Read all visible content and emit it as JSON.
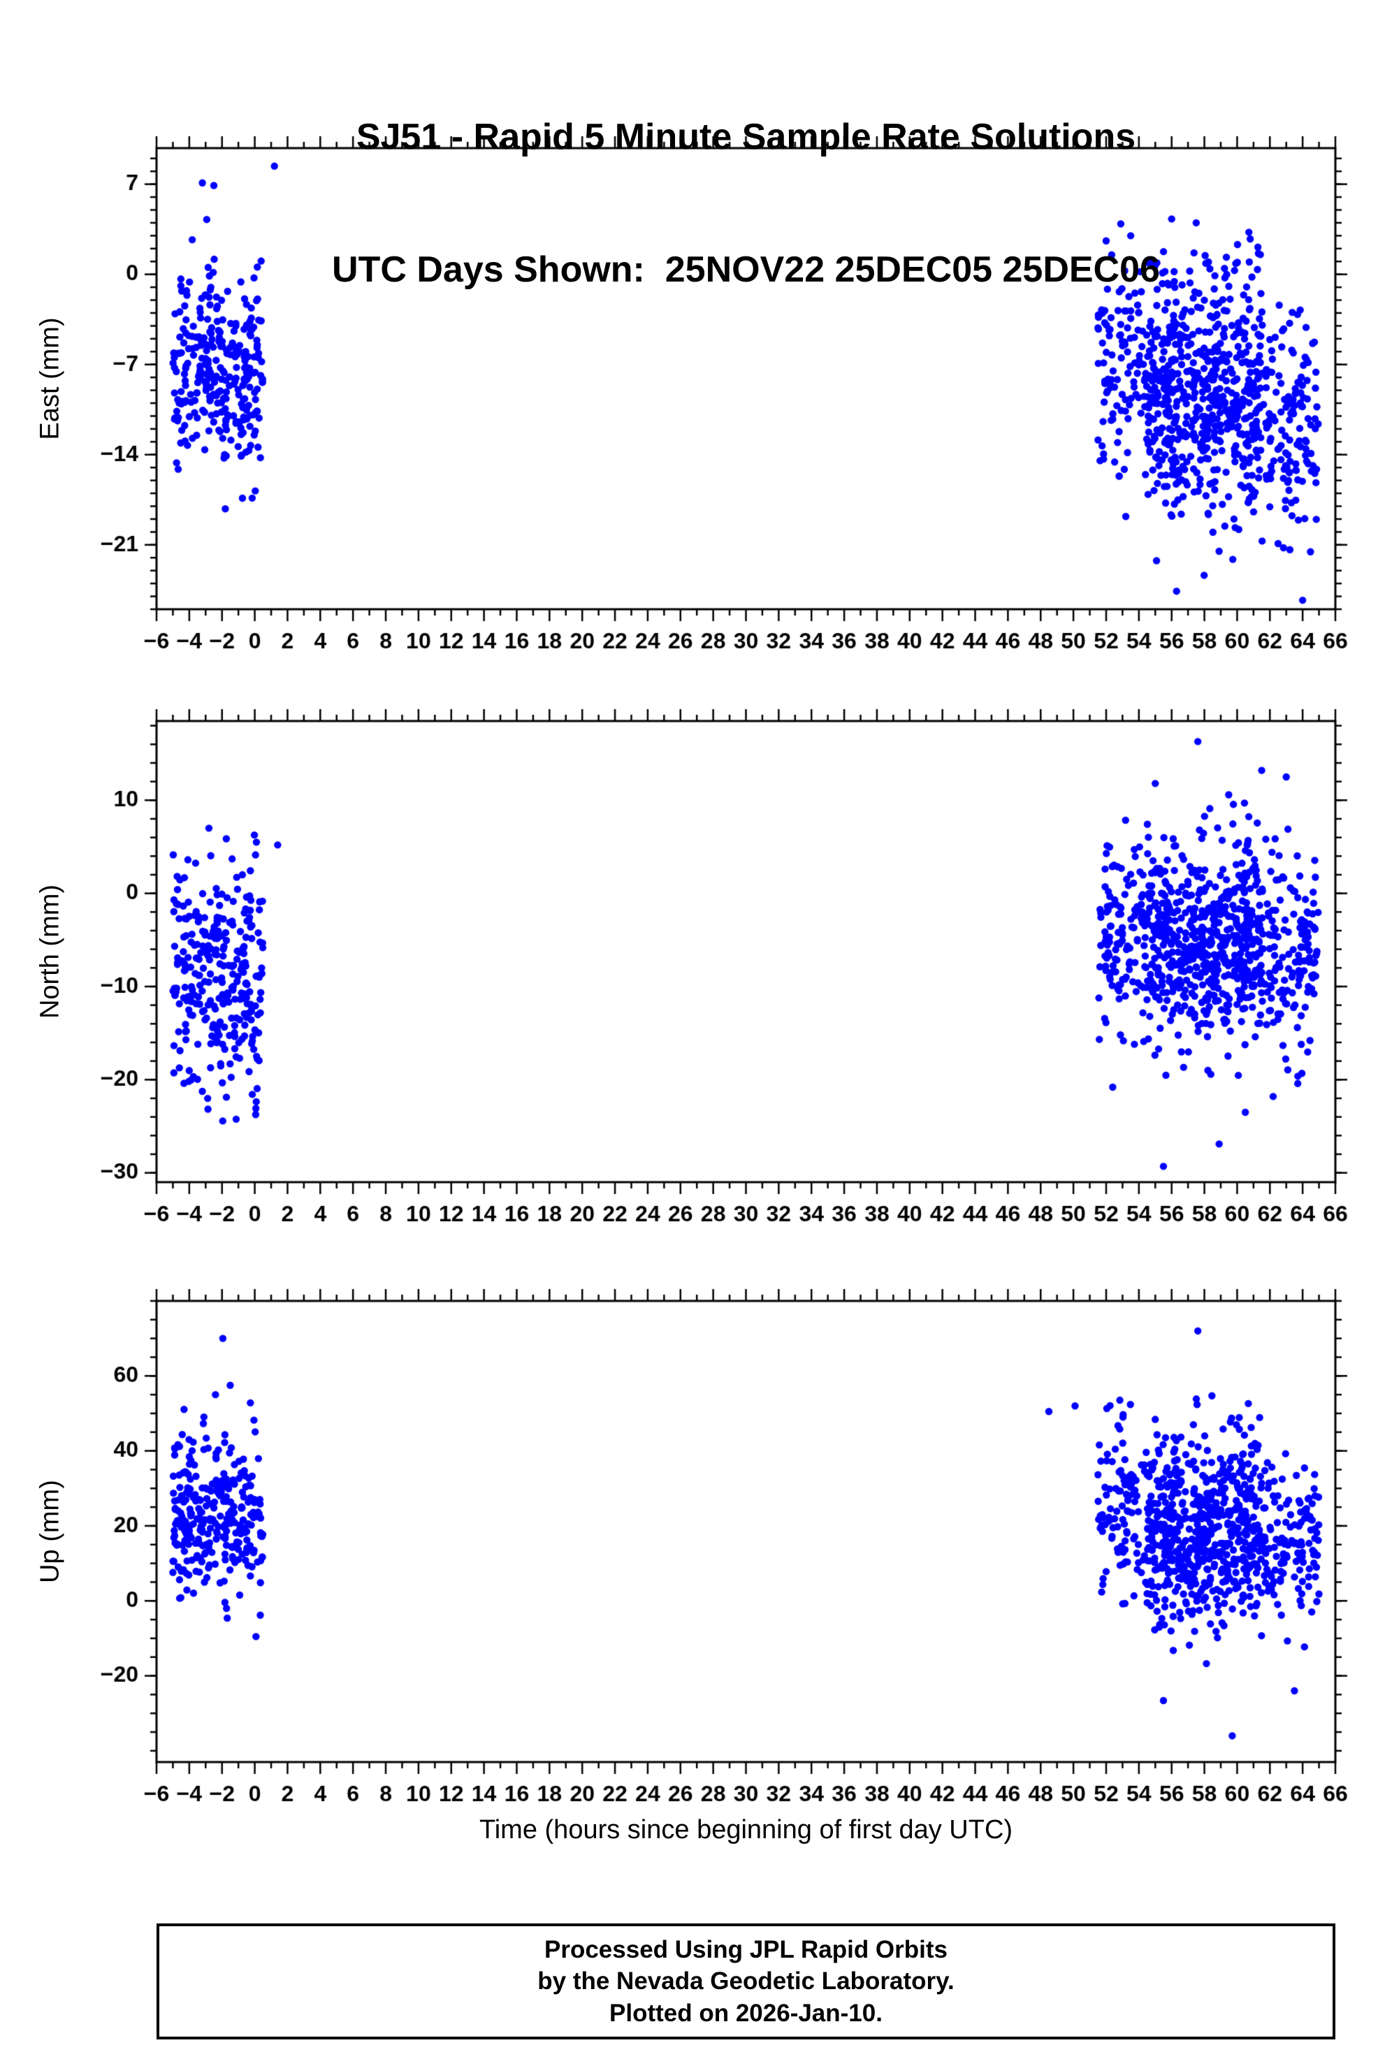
{
  "title": {
    "line1": "SJ51 - Rapid 5 Minute Sample Rate Solutions",
    "line2": "UTC Days Shown:  25NOV22 25DEC05 25DEC06"
  },
  "footer": {
    "line1": "Processed Using JPL Rapid Orbits",
    "line2": "by the Nevada Geodetic Laboratory.",
    "line3": "Plotted on 2026-Jan-10."
  },
  "colors": {
    "point": "#0000ff",
    "axis": "#000000",
    "background": "#ffffff"
  },
  "chart_data": {
    "type": "scatter",
    "title": "SJ51 - Rapid 5 Minute Sample Rate Solutions",
    "subtitle": "UTC Days Shown:  25NOV22 25DEC05 25DEC06",
    "xlabel": "Time (hours since beginning of first day UTC)",
    "days_shown": [
      "25NOV22",
      "25DEC05",
      "25DEC06"
    ],
    "point_color": "#0000ff",
    "x_axis": {
      "range": [
        -6,
        66
      ],
      "major_step": 2,
      "minor_step": 1,
      "units": "hours"
    },
    "panels": [
      {
        "id": "east",
        "ylabel": "East (mm)",
        "y_range": [
          -26,
          9.8
        ],
        "y_ticks": [
          7,
          0,
          -7,
          -14,
          -21
        ],
        "y_minor_step": 1,
        "clusters": [
          {
            "count": 300,
            "x_range": [
              -5.0,
              0.5
            ],
            "y_mean": -7.5,
            "y_std": 3.9,
            "y_clamp": [
              -18.5,
              7.5
            ]
          },
          {
            "count": 400,
            "x_range": [
              51.5,
              61.5
            ],
            "y_mean": -7.0,
            "y_std": 4.3,
            "y_clamp": [
              -20.0,
              4.5
            ]
          },
          {
            "count": 450,
            "x_range": [
              54.5,
              65.0
            ],
            "y_mean": -11.5,
            "y_std": 4.2,
            "y_clamp": [
              -23.5,
              0.5
            ]
          }
        ],
        "outliers": [
          [
            -3.2,
            7.1
          ],
          [
            -2.5,
            6.9
          ],
          [
            1.2,
            8.4
          ],
          [
            -1.8,
            -18.2
          ],
          [
            52.0,
            2.6
          ],
          [
            53.5,
            3.0
          ],
          [
            56.0,
            4.3
          ],
          [
            57.5,
            4.0
          ],
          [
            53.2,
            -18.8
          ],
          [
            58.9,
            -21.5
          ],
          [
            56.3,
            -24.6
          ],
          [
            64.0,
            -25.3
          ],
          [
            62.5,
            -20.9
          ],
          [
            60.1,
            -19.8
          ]
        ]
      },
      {
        "id": "north",
        "ylabel": "North (mm)",
        "y_range": [
          -31,
          18.5
        ],
        "y_ticks": [
          10,
          0,
          -10,
          -20,
          -30
        ],
        "y_minor_step": 2,
        "clusters": [
          {
            "count": 300,
            "x_range": [
              -5.0,
              0.5
            ],
            "y_mean": -8.5,
            "y_std": 6.2,
            "y_clamp": [
              -26.0,
              7.0
            ]
          },
          {
            "count": 400,
            "x_range": [
              51.5,
              61.5
            ],
            "y_mean": -4.5,
            "y_std": 5.5,
            "y_clamp": [
              -20.5,
              13.0
            ]
          },
          {
            "count": 450,
            "x_range": [
              54.5,
              65.0
            ],
            "y_mean": -6.0,
            "y_std": 5.5,
            "y_clamp": [
              -22.0,
              11.0
            ]
          }
        ],
        "outliers": [
          [
            -2.8,
            7.0
          ],
          [
            0.1,
            5.5
          ],
          [
            1.4,
            5.2
          ],
          [
            57.6,
            16.3
          ],
          [
            61.5,
            13.2
          ],
          [
            55.0,
            11.8
          ],
          [
            63.0,
            12.5
          ],
          [
            55.5,
            -29.3
          ],
          [
            58.9,
            -26.9
          ],
          [
            52.4,
            -20.8
          ],
          [
            60.5,
            -23.5
          ],
          [
            62.2,
            -21.8
          ]
        ]
      },
      {
        "id": "up",
        "ylabel": "Up (mm)",
        "y_range": [
          -43,
          80
        ],
        "y_ticks": [
          60,
          40,
          20,
          0,
          -20
        ],
        "y_minor_step": 5,
        "clusters": [
          {
            "count": 300,
            "x_range": [
              -5.0,
              0.5
            ],
            "y_mean": 22.0,
            "y_std": 11.0,
            "y_clamp": [
              -11.0,
              57.0
            ]
          },
          {
            "count": 400,
            "x_range": [
              51.5,
              61.5
            ],
            "y_mean": 24.0,
            "y_std": 12.0,
            "y_clamp": [
              -15.0,
              55.0
            ]
          },
          {
            "count": 450,
            "x_range": [
              54.5,
              65.0
            ],
            "y_mean": 15.0,
            "y_std": 12.0,
            "y_clamp": [
              -28.0,
              50.0
            ]
          }
        ],
        "outliers": [
          [
            -1.95,
            70.0
          ],
          [
            -1.5,
            57.5
          ],
          [
            -2.4,
            55.0
          ],
          [
            57.6,
            72.0
          ],
          [
            48.5,
            50.5
          ],
          [
            50.1,
            52.0
          ],
          [
            59.7,
            -36.0
          ],
          [
            55.5,
            -26.6
          ],
          [
            63.5,
            -24.0
          ]
        ]
      }
    ]
  }
}
